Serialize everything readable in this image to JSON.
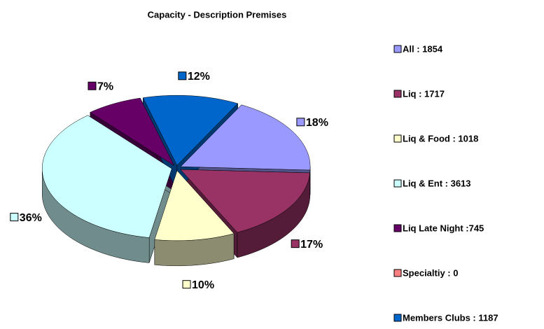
{
  "chart_data": {
    "type": "pie",
    "title": "Capacity - Description Premises",
    "categories": [
      "All : 1854",
      "Liq : 1717",
      "Liq & Food : 1018",
      "Liq & Ent : 3613",
      "Liq Late Night :745",
      "Specialtiy : 0",
      "Members Clubs : 1187"
    ],
    "values": [
      18,
      17,
      10,
      36,
      7,
      0,
      12
    ],
    "value_labels": [
      "18%",
      "17%",
      "10%",
      "36%",
      "7%",
      null,
      "12%"
    ],
    "colors": [
      "#9999ff",
      "#993366",
      "#ffffcc",
      "#ccffff",
      "#660066",
      "#ff8080",
      "#0066cc"
    ],
    "legend": "right"
  }
}
